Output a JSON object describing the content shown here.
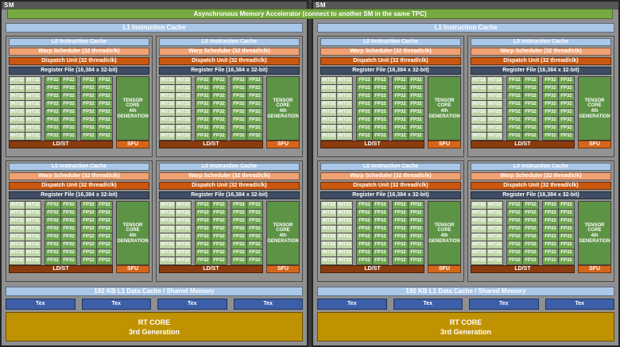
{
  "banner": {
    "label": "Asynchronous Memory Accelerator (connect to another SM in the same TPC)"
  },
  "sm_count": 2,
  "sm": {
    "label": "SM",
    "l1_instruction_cache": "L1 Instruction Cache",
    "blocks_count": 4,
    "block": {
      "l0_cache": "L0 Instruction Cache",
      "warp_scheduler": "Warp Scheduler (32 thread/clk)",
      "dispatch_unit": "Dispatch Unit (32 thread/clk)",
      "register_file": "Register File (16,384 x 32-bit)",
      "rows": 8,
      "int32_label": "INT32",
      "fp32_label": "FP32",
      "int32_count": 16,
      "fp32_count": 32,
      "tensor_core": {
        "line1": "TENSOR CORE",
        "line2": "4th",
        "line3": "GENERATION"
      },
      "ldst": "LD/ST",
      "sfu": "SFU"
    },
    "l1_data_cache": "192 KB L1 Data Cache / Shared Memory",
    "tex_label": "Tex",
    "tex_count": 4,
    "rt_core": {
      "line1": "RT CORE",
      "line2": "3rd Generation"
    }
  },
  "colors": {
    "banner_green": "#76aa41",
    "cache_blue": "#a9c7e8",
    "warp_salmon": "#f0a173",
    "dispatch_orange": "#c9570f",
    "regfile_navy": "#3e4d63",
    "int32_green": "#bdd3a5",
    "fp32_green": "#6da64d",
    "tensor_green": "#5d9345",
    "ldst_brown": "#8a3c0f",
    "sfu_orange": "#d3661b",
    "tex_blue": "#3c5fa8",
    "rtcore_gold": "#c09201",
    "sm_gray": "#8f8f8f",
    "frame_dark": "#3c3c3c"
  }
}
